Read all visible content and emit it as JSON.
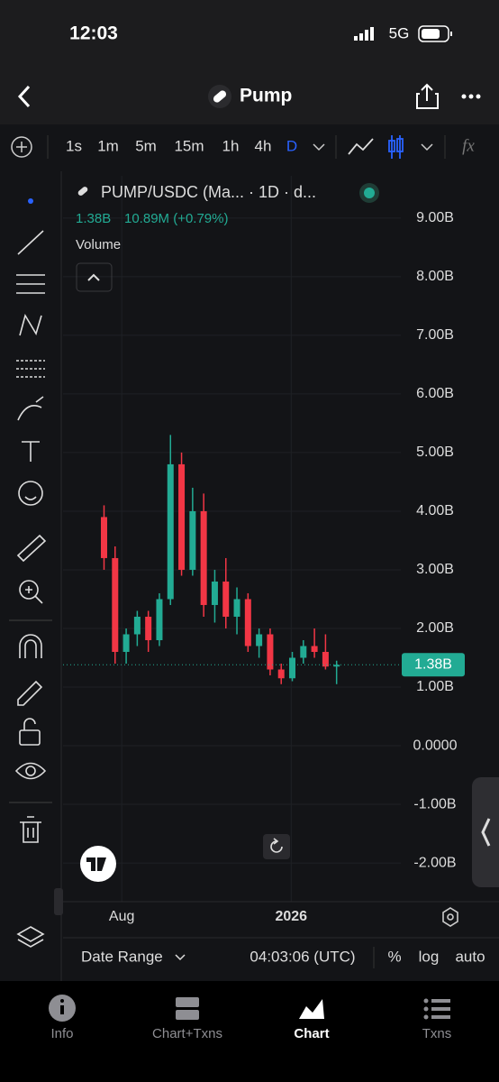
{
  "status": {
    "time": "12:03",
    "network": "5G"
  },
  "header": {
    "title": "Pump"
  },
  "toolbar": {
    "timeframes": [
      "1s",
      "1m",
      "5m",
      "15m",
      "1h",
      "4h",
      "D"
    ],
    "function_label": "fx"
  },
  "chart_data": {
    "type": "candlestick",
    "title": "PUMP/USDC (Ma... · 1D · d...",
    "price_label": "1.38B",
    "change_label": "10.89M (+0.79%)",
    "indicator": "Volume",
    "x": [
      0,
      10,
      20,
      30,
      40,
      50,
      60,
      70,
      80,
      90,
      100,
      110,
      120,
      130,
      140,
      150,
      160,
      170,
      180,
      190,
      200,
      210
    ],
    "open": [
      3.9,
      3.2,
      1.6,
      1.9,
      2.2,
      1.8,
      2.5,
      4.8,
      3.0,
      4.0,
      2.4,
      2.8,
      2.2,
      2.5,
      1.7,
      1.9,
      1.3,
      1.15,
      1.5,
      1.7,
      1.6,
      1.35
    ],
    "high": [
      4.1,
      3.4,
      2.0,
      2.3,
      2.3,
      2.6,
      5.3,
      5.0,
      4.4,
      4.3,
      3.0,
      3.2,
      2.7,
      2.6,
      2.0,
      2.0,
      1.4,
      1.6,
      1.8,
      2.0,
      1.9,
      1.45
    ],
    "low": [
      3.0,
      1.4,
      1.4,
      1.7,
      1.6,
      1.7,
      2.4,
      2.9,
      2.9,
      2.2,
      2.1,
      2.0,
      1.9,
      1.6,
      1.5,
      1.2,
      1.05,
      1.1,
      1.4,
      1.5,
      1.3,
      1.05
    ],
    "close": [
      3.2,
      1.6,
      1.9,
      2.2,
      1.8,
      2.5,
      4.8,
      3.0,
      4.0,
      2.4,
      2.8,
      2.2,
      2.5,
      1.7,
      1.9,
      1.3,
      1.15,
      1.5,
      1.7,
      1.6,
      1.35,
      1.38
    ],
    "up_color": "#22ab94",
    "down_color": "#f23645",
    "xlim": [
      -37,
      268
    ],
    "xticks": [
      {
        "value": 16,
        "label": "Aug"
      },
      {
        "value": 169,
        "label": "2026"
      }
    ],
    "ylim": [
      -2.66,
      9.72
    ],
    "yticks": [
      {
        "value": 9,
        "label": "9.00B"
      },
      {
        "value": 8,
        "label": "8.00B"
      },
      {
        "value": 7,
        "label": "7.00B"
      },
      {
        "value": 6,
        "label": "6.00B"
      },
      {
        "value": 5,
        "label": "5.00B"
      },
      {
        "value": 4,
        "label": "4.00B"
      },
      {
        "value": 3,
        "label": "3.00B"
      },
      {
        "value": 2,
        "label": "2.00B"
      },
      {
        "value": 1,
        "label": "1.00B"
      },
      {
        "value": 0,
        "label": "0.0000"
      },
      {
        "value": -1,
        "label": "-1.00B"
      },
      {
        "value": -2,
        "label": "-2.00B"
      }
    ],
    "last_price": {
      "value": 1.38,
      "label": "1.38B"
    },
    "grid": true
  },
  "footer": {
    "date_range": "Date Range",
    "time": "04:03:06 (UTC)",
    "percent": "%",
    "log": "log",
    "auto": "auto"
  },
  "tabs": [
    "Info",
    "Chart+Txns",
    "Chart",
    "Txns"
  ]
}
